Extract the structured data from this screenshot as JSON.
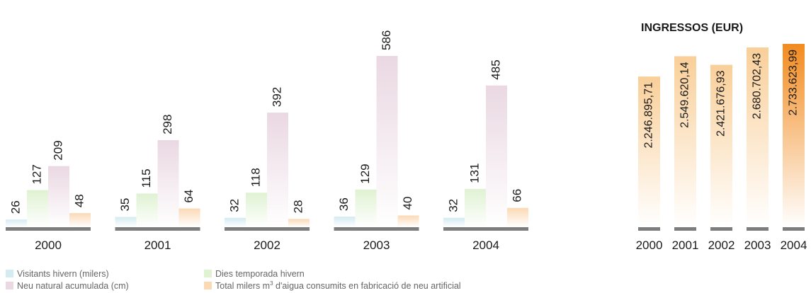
{
  "chart_data": [
    {
      "type": "bar",
      "categories": [
        "2000",
        "2001",
        "2002",
        "2003",
        "2004"
      ],
      "series": [
        {
          "name": "Visitants hivern (milers)",
          "values": [
            26,
            35,
            32,
            36,
            32
          ],
          "color": "#d4ebf2"
        },
        {
          "name": "Dies temporada hivern",
          "values": [
            127,
            115,
            118,
            129,
            131
          ],
          "color": "#dff2d2"
        },
        {
          "name": "Neu natural acumulada (cm)",
          "values": [
            209,
            298,
            392,
            586,
            485
          ],
          "color": "#ead8e2"
        },
        {
          "name": "Total milers m³ d'aigua consumits en fabricació de neu artificial",
          "values": [
            48,
            64,
            28,
            40,
            66
          ],
          "color": "#fbd9b5"
        }
      ],
      "value_labels": {
        "Visitants hivern (milers)": [
          "26",
          "35",
          "32",
          "36",
          "32"
        ],
        "Dies temporada hivern": [
          "127",
          "115",
          "118",
          "129",
          "131"
        ],
        "Neu natural acumulada (cm)": [
          "209",
          "298",
          "392",
          "586",
          "485"
        ],
        "Total milers m³ d'aigua consumits en fabricació de neu artificial": [
          "48",
          "64",
          "28",
          "40",
          "66"
        ]
      },
      "legend_placement": "bottom-left",
      "grid": false
    },
    {
      "type": "bar",
      "title": "INGRESSOS (EUR)",
      "categories": [
        "2000",
        "2001",
        "2002",
        "2003",
        "2004"
      ],
      "values": [
        2246895.71,
        2549620.14,
        2421676.93,
        2680702.43,
        2733623.99
      ],
      "value_labels": [
        "2.246.895,71",
        "2.549.620,14",
        "2.421.676,93",
        "2.680.702,43",
        "2.733.623,99"
      ],
      "colors": {
        "normal": "#f9cf99",
        "highlight": "#f28b1f"
      },
      "highlight_index": 4,
      "grid": false
    }
  ],
  "legend": {
    "items": [
      {
        "label": "Visitants hivern (milers)",
        "color": "#d4ebf2"
      },
      {
        "label": "Dies temporada hivern",
        "color": "#dff2d2"
      },
      {
        "label": "Neu natural acumulada (cm)",
        "color": "#ead8e2"
      },
      {
        "label": "Total milers m³ d'aigua consumits en fabricació de neu artificial",
        "color": "#fbd9b5"
      }
    ]
  }
}
